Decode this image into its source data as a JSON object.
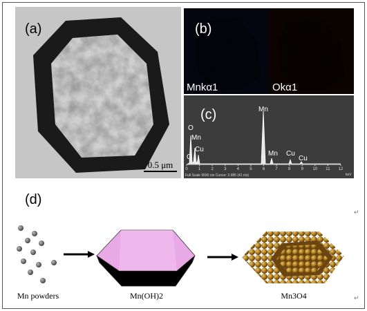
{
  "panels": {
    "a": {
      "label": "(a)",
      "scale_bar": "0.5 μm"
    },
    "b": {
      "label": "(b)",
      "maps": [
        "Mnkα1",
        "Okα1"
      ]
    },
    "c": {
      "label": "(c)",
      "peaks": [
        "O",
        "C",
        "Mn",
        "Cu",
        "Mn",
        "Mn",
        "Cu",
        "Cu"
      ],
      "axis_ticks": [
        "0",
        "1",
        "2",
        "3",
        "4",
        "5",
        "6",
        "7",
        "8",
        "9",
        "10",
        "11",
        "12"
      ],
      "axis_unit": "keV",
      "footer": "Full Scale 9590 cts Cursor: 3.985  (41 cts)"
    },
    "d": {
      "label": "(d)",
      "steps": [
        "Mn powders",
        "Mn(OH)2",
        "Mn3O4"
      ]
    }
  }
}
